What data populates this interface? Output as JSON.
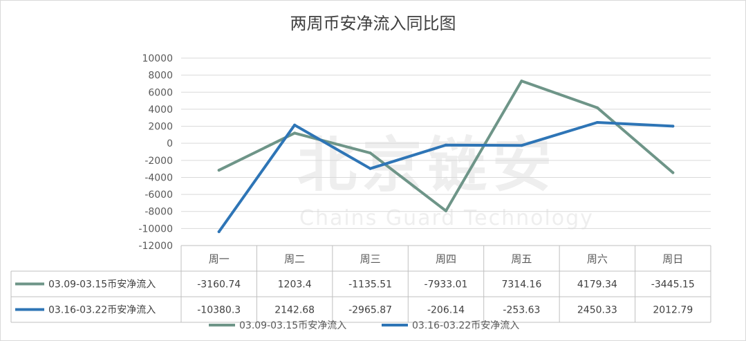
{
  "title": "两周币安净流入同比图",
  "watermark": {
    "main": "北京链安",
    "sub": "Chains Guard Technology"
  },
  "colors": {
    "series1": "#6e9588",
    "series2": "#2e75b6",
    "grid": "#d9d9d9",
    "table": "#bfbfbf"
  },
  "chart_data": {
    "type": "line",
    "title": "两周币安净流入同比图",
    "categories": [
      "周一",
      "周二",
      "周三",
      "周四",
      "周五",
      "周六",
      "周日"
    ],
    "ylim": [
      -12000,
      10000
    ],
    "yticks": [
      10000,
      8000,
      6000,
      4000,
      2000,
      0,
      -2000,
      -4000,
      -6000,
      -8000,
      -10000,
      -12000
    ],
    "grid": true,
    "legend": "bottom",
    "data_table": true,
    "series": [
      {
        "name": "03.09-03.15币安净流入",
        "values": [
          -3160.74,
          1203.4,
          -1135.51,
          -7933.01,
          7314.16,
          4179.34,
          -3445.15
        ],
        "labels": [
          "-3160.74",
          "1203.4",
          "-1135.51",
          "-7933.01",
          "7314.16",
          "4179.34",
          "-3445.15"
        ]
      },
      {
        "name": "03.16-03.22币安净流入",
        "values": [
          -10380.3,
          2142.68,
          -2965.87,
          -206.14,
          -253.63,
          2450.33,
          2012.79
        ],
        "labels": [
          "-10380.3",
          "2142.68",
          "-2965.87",
          "-206.14",
          "-253.63",
          "2450.33",
          "2012.79"
        ]
      }
    ]
  }
}
